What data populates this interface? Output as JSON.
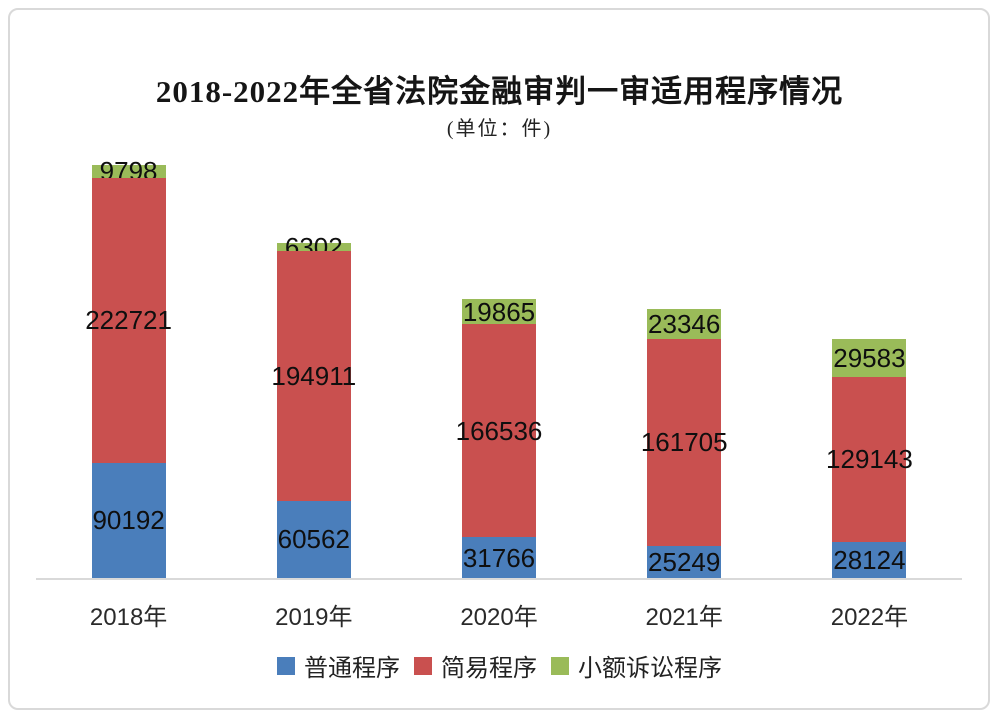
{
  "page": {
    "background_color": "#ffffff",
    "frame_border_color": "#d9d9d9",
    "axis_line_color": "#d9d9d9",
    "data_label_color": "#0f0f0f"
  },
  "chart_data": {
    "type": "bar",
    "stacked": true,
    "title": "2018-2022年全省法院金融审判一审适用程序情况",
    "subtitle": "(单位：件)",
    "categories": [
      "2018年",
      "2019年",
      "2020年",
      "2021年",
      "2022年"
    ],
    "series": [
      {
        "name": "普通程序",
        "color": "#4a7ebb",
        "values": [
          90192,
          60562,
          31766,
          25249,
          28124
        ]
      },
      {
        "name": "简易程序",
        "color": "#c9504f",
        "values": [
          222721,
          194911,
          166536,
          161705,
          129143
        ]
      },
      {
        "name": "小额诉讼程序",
        "color": "#9abb59",
        "values": [
          9798,
          6302,
          19865,
          23346,
          29583
        ]
      }
    ],
    "totals": [
      322711,
      261775,
      218167,
      210300,
      186850
    ],
    "legend_position": "bottom",
    "grid": false,
    "y_axis_visible": false,
    "data_labels_visible": true
  }
}
